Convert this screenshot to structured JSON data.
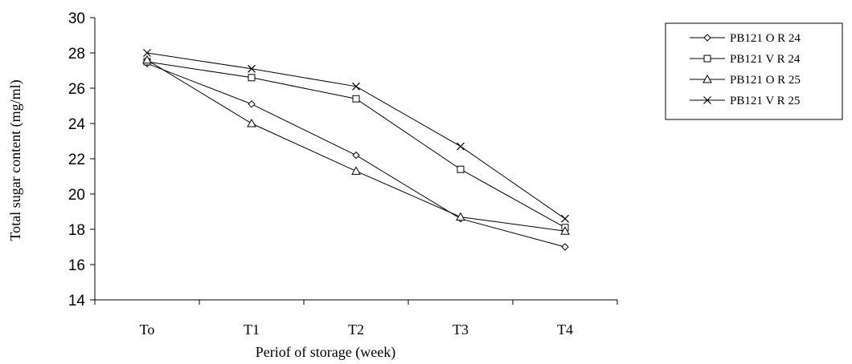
{
  "chart_data": {
    "type": "line",
    "xlabel": "Periof of storage  (week)",
    "ylabel": "Total  sugar content  (mg/ml)",
    "categories": [
      "To",
      "T1",
      "T2",
      "T3",
      "T4"
    ],
    "ylim": [
      14,
      30
    ],
    "yticks": [
      14,
      16,
      18,
      20,
      22,
      24,
      26,
      28,
      30
    ],
    "grid": false,
    "legend_position": "top-right",
    "series": [
      {
        "name": "PB121 O R 24",
        "marker": "diamond",
        "values": [
          27.4,
          25.1,
          22.2,
          18.6,
          17.0
        ]
      },
      {
        "name": "PB121 V R 24",
        "marker": "square",
        "values": [
          27.5,
          26.6,
          25.4,
          21.4,
          18.1
        ]
      },
      {
        "name": "PB121 O R 25",
        "marker": "triangle",
        "values": [
          27.6,
          24.0,
          21.3,
          18.7,
          17.9
        ]
      },
      {
        "name": "PB121 V R 25",
        "marker": "x",
        "values": [
          28.0,
          27.1,
          26.1,
          22.7,
          18.6
        ]
      }
    ]
  }
}
